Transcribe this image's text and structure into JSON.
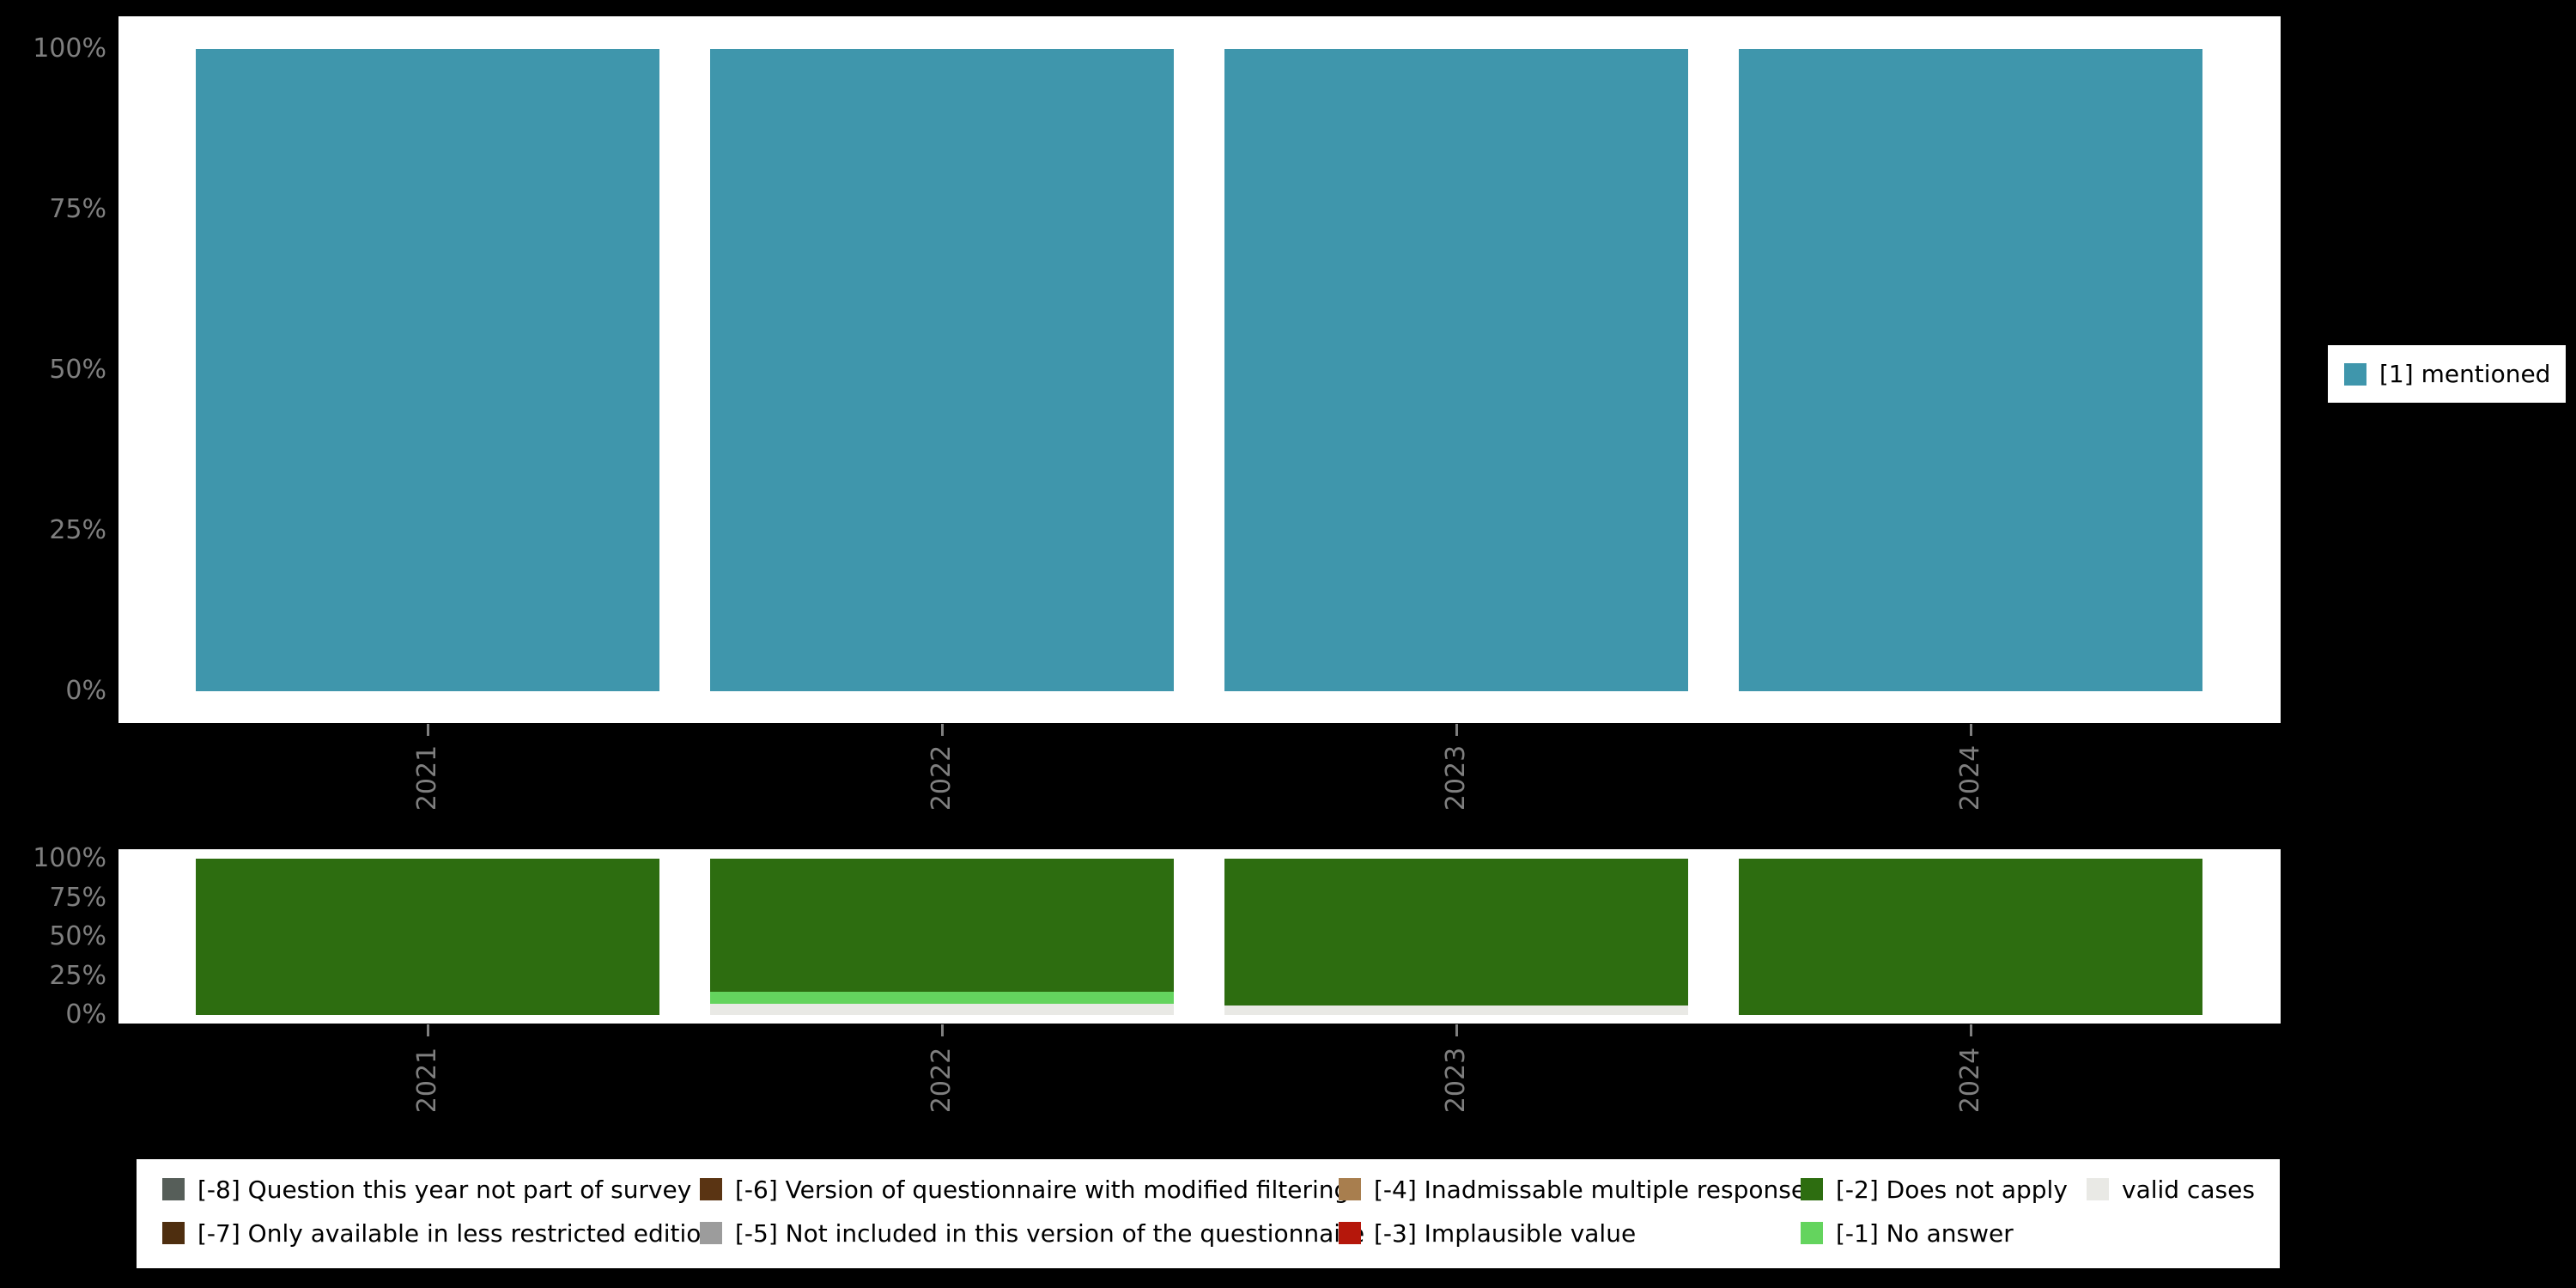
{
  "background": "#000000",
  "panel_color": "#ffffff",
  "axis_text_color": "#7f7f7f",
  "top_legend": {
    "label": "[1] mentioned",
    "color": "#3f96ac"
  },
  "chart_data": [
    {
      "type": "bar",
      "stacked": true,
      "title": "",
      "categories": [
        "2021",
        "2022",
        "2023",
        "2024"
      ],
      "yticks": [
        "0%",
        "25%",
        "50%",
        "75%",
        "100%"
      ],
      "ylim": [
        0,
        100
      ],
      "grid": false,
      "legend_position": "right",
      "series": [
        {
          "name": "[1] mentioned",
          "color": "#3f96ac",
          "values": [
            100,
            100,
            100,
            100
          ]
        }
      ]
    },
    {
      "type": "bar",
      "stacked": true,
      "title": "",
      "categories": [
        "2021",
        "2022",
        "2023",
        "2024"
      ],
      "yticks": [
        "0%",
        "25%",
        "50%",
        "75%",
        "100%"
      ],
      "ylim": [
        0,
        100
      ],
      "grid": false,
      "legend_position": "bottom",
      "series": [
        {
          "name": "[-2] Does not apply",
          "color": "#2d6d10",
          "values": [
            100,
            85,
            94,
            100
          ]
        },
        {
          "name": "[-1] No answer",
          "color": "#64d45e",
          "values": [
            0,
            8,
            0,
            0
          ]
        },
        {
          "name": "valid cases",
          "color": "#e9e9e5",
          "values": [
            0,
            7,
            6,
            0
          ]
        }
      ]
    }
  ],
  "missing_legend": {
    "items": [
      {
        "label": "[-8] Question this year not part of survey",
        "color": "#565e59"
      },
      {
        "label": "[-6] Version of questionnaire with modified filtering",
        "color": "#5a3413"
      },
      {
        "label": "[-4] Inadmissable multiple response",
        "color": "#a87e4e"
      },
      {
        "label": "[-2] Does not apply",
        "color": "#2d6d10"
      },
      {
        "label": "valid cases",
        "color": "#e9e9e5"
      },
      {
        "label": "[-7] Only available in less restricted edition",
        "color": "#4e2e0f"
      },
      {
        "label": "[-5] Not included in this version of the questionnaire",
        "color": "#9c9c9c"
      },
      {
        "label": "[-3] Implausible value",
        "color": "#b5170b"
      },
      {
        "label": "[-1] No answer",
        "color": "#64d45e"
      }
    ]
  }
}
